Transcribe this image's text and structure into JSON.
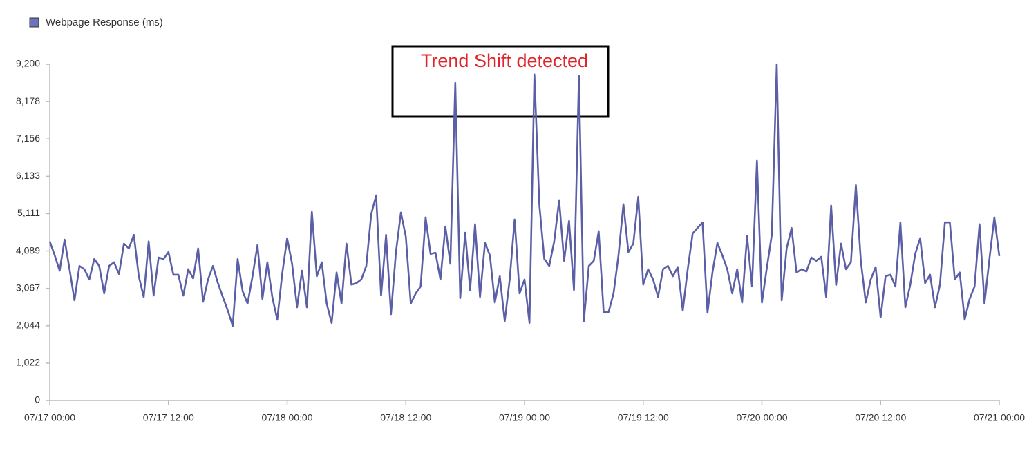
{
  "chart_data": {
    "type": "line",
    "legend_position": "top-left",
    "annotation": "Trend Shift detected",
    "xlim": [
      "07/17 00:00",
      "07/21 00:00"
    ],
    "xticks": [
      "07/17 00:00",
      "07/17 12:00",
      "07/18 00:00",
      "07/18 12:00",
      "07/19 00:00",
      "07/19 12:00",
      "07/20 00:00",
      "07/20 12:00",
      "07/21 00:00"
    ],
    "ylim": [
      0,
      9200
    ],
    "yticks": [
      0,
      {
        "value": 1022,
        "label": "1,022"
      },
      {
        "value": 2044,
        "label": "2,044"
      },
      {
        "value": 3067,
        "label": "3,067"
      },
      {
        "value": 4089,
        "label": "4,089"
      },
      {
        "value": 5111,
        "label": "5,111"
      },
      {
        "value": 6133,
        "label": "6,133"
      },
      {
        "value": 7156,
        "label": "7,156"
      },
      {
        "value": 8178,
        "label": "8,178"
      },
      {
        "value": 9200,
        "label": "9,200"
      }
    ],
    "grid": false,
    "x": [
      "07/17 00:00",
      "07/17 00:30",
      "07/17 01:00",
      "07/17 01:30",
      "07/17 02:00",
      "07/17 02:30",
      "07/17 03:00",
      "07/17 03:30",
      "07/17 04:00",
      "07/17 04:30",
      "07/17 05:00",
      "07/17 05:30",
      "07/17 06:00",
      "07/17 06:30",
      "07/17 07:00",
      "07/17 07:30",
      "07/17 08:00",
      "07/17 08:30",
      "07/17 09:00",
      "07/17 09:30",
      "07/17 10:00",
      "07/17 10:30",
      "07/17 11:00",
      "07/17 11:30",
      "07/17 12:00",
      "07/17 12:30",
      "07/17 13:00",
      "07/17 13:30",
      "07/17 14:00",
      "07/17 14:30",
      "07/17 15:00",
      "07/17 15:30",
      "07/17 16:00",
      "07/17 16:30",
      "07/17 17:00",
      "07/17 17:30",
      "07/17 18:00",
      "07/17 18:30",
      "07/17 19:00",
      "07/17 19:30",
      "07/17 20:00",
      "07/17 20:30",
      "07/17 21:00",
      "07/17 21:30",
      "07/17 22:00",
      "07/17 22:30",
      "07/17 23:00",
      "07/17 23:30",
      "07/18 00:00",
      "07/18 00:30",
      "07/18 01:00",
      "07/18 01:30",
      "07/18 02:00",
      "07/18 02:30",
      "07/18 03:00",
      "07/18 03:30",
      "07/18 04:00",
      "07/18 04:30",
      "07/18 05:00",
      "07/18 05:30",
      "07/18 06:00",
      "07/18 06:30",
      "07/18 07:00",
      "07/18 07:30",
      "07/18 08:00",
      "07/18 08:30",
      "07/18 09:00",
      "07/18 09:30",
      "07/18 10:00",
      "07/18 10:30",
      "07/18 11:00",
      "07/18 11:30",
      "07/18 12:00",
      "07/18 12:30",
      "07/18 13:00",
      "07/18 13:30",
      "07/18 14:00",
      "07/18 14:30",
      "07/18 15:00",
      "07/18 15:30",
      "07/18 16:00",
      "07/18 16:30",
      "07/18 17:00",
      "07/18 17:30",
      "07/18 18:00",
      "07/18 18:30",
      "07/18 19:00",
      "07/18 19:30",
      "07/18 20:00",
      "07/18 20:30",
      "07/18 21:00",
      "07/18 21:30",
      "07/18 22:00",
      "07/18 22:30",
      "07/18 23:00",
      "07/18 23:30",
      "07/19 00:00",
      "07/19 00:30",
      "07/19 01:00",
      "07/19 01:30",
      "07/19 02:00",
      "07/19 02:30",
      "07/19 03:00",
      "07/19 03:30",
      "07/19 04:00",
      "07/19 04:30",
      "07/19 05:00",
      "07/19 05:30",
      "07/19 06:00",
      "07/19 06:30",
      "07/19 07:00",
      "07/19 07:30",
      "07/19 08:00",
      "07/19 08:30",
      "07/19 09:00",
      "07/19 09:30",
      "07/19 10:00",
      "07/19 10:30",
      "07/19 11:00",
      "07/19 11:30",
      "07/19 12:00",
      "07/19 12:30",
      "07/19 13:00",
      "07/19 13:30",
      "07/19 14:00",
      "07/19 14:30",
      "07/19 15:00",
      "07/19 15:30",
      "07/19 16:00",
      "07/19 16:30",
      "07/19 17:00",
      "07/19 17:30",
      "07/19 18:00",
      "07/19 18:30",
      "07/19 19:00",
      "07/19 19:30",
      "07/19 20:00",
      "07/19 20:30",
      "07/19 21:00",
      "07/19 21:30",
      "07/19 22:00",
      "07/19 22:30",
      "07/19 23:00",
      "07/19 23:30",
      "07/20 00:00",
      "07/20 00:30",
      "07/20 01:00",
      "07/20 01:30",
      "07/20 02:00",
      "07/20 02:30",
      "07/20 03:00",
      "07/20 03:30",
      "07/20 04:00",
      "07/20 04:30",
      "07/20 05:00",
      "07/20 05:30",
      "07/20 06:00",
      "07/20 06:30",
      "07/20 07:00",
      "07/20 07:30",
      "07/20 08:00",
      "07/20 08:30",
      "07/20 09:00",
      "07/20 09:30",
      "07/20 10:00",
      "07/20 10:30",
      "07/20 11:00",
      "07/20 11:30",
      "07/20 12:00",
      "07/20 12:30",
      "07/20 13:00",
      "07/20 13:30",
      "07/20 14:00",
      "07/20 14:30",
      "07/20 15:00",
      "07/20 15:30",
      "07/20 16:00",
      "07/20 16:30",
      "07/20 17:00",
      "07/20 17:30",
      "07/20 18:00",
      "07/20 18:30",
      "07/20 19:00",
      "07/20 19:30",
      "07/20 20:00",
      "07/20 20:30",
      "07/20 21:00",
      "07/20 21:30",
      "07/20 22:00",
      "07/20 22:30",
      "07/20 23:00",
      "07/20 23:30",
      "07/21 00:00"
    ],
    "series": [
      {
        "name": "Webpage Response (ms)",
        "color": "#5b5fa6",
        "legend_color": "#6e72b8",
        "values": [
          4350,
          3970,
          3550,
          4400,
          3590,
          2740,
          3680,
          3590,
          3310,
          3870,
          3680,
          2930,
          3680,
          3780,
          3460,
          4290,
          4160,
          4530,
          3400,
          2830,
          4350,
          2870,
          3910,
          3870,
          4060,
          3440,
          3440,
          2870,
          3590,
          3340,
          4160,
          2700,
          3310,
          3680,
          3210,
          2830,
          2460,
          2040,
          3870,
          2990,
          2650,
          3400,
          4250,
          2780,
          3780,
          2830,
          2210,
          3460,
          4440,
          3740,
          2550,
          3550,
          2550,
          5160,
          3400,
          3780,
          2650,
          2120,
          3500,
          2650,
          4290,
          3170,
          3210,
          3310,
          3680,
          5100,
          5610,
          2870,
          4530,
          2360,
          4060,
          5140,
          4480,
          2650,
          2930,
          3120,
          5010,
          4010,
          4040,
          3310,
          4760,
          3740,
          8690,
          2800,
          4590,
          3020,
          4820,
          2830,
          4310,
          3970,
          2680,
          3400,
          2170,
          3310,
          4950,
          2930,
          3310,
          2120,
          8920,
          5350,
          3870,
          3680,
          4350,
          5480,
          3820,
          4910,
          3020,
          8880,
          2170,
          3680,
          3820,
          4630,
          2420,
          2420,
          2930,
          3970,
          5370,
          4060,
          4290,
          5570,
          3170,
          3590,
          3310,
          2830,
          3590,
          3680,
          3400,
          3650,
          2460,
          3590,
          4570,
          4720,
          4870,
          2400,
          3500,
          4310,
          3970,
          3590,
          2930,
          3590,
          2680,
          4500,
          3120,
          6560,
          2680,
          3630,
          4530,
          9200,
          2740,
          4160,
          4720,
          3500,
          3590,
          3530,
          3910,
          3820,
          3930,
          2830,
          5330,
          3160,
          4290,
          3590,
          3780,
          5890,
          3820,
          2680,
          3310,
          3650,
          2270,
          3400,
          3440,
          3120,
          4870,
          2550,
          3170,
          4010,
          4440,
          3210,
          3440,
          2550,
          3170,
          4870,
          4870,
          3310,
          3500,
          2210,
          2780,
          3120,
          4820,
          2650,
          3870,
          5010,
          3950
        ]
      }
    ]
  }
}
